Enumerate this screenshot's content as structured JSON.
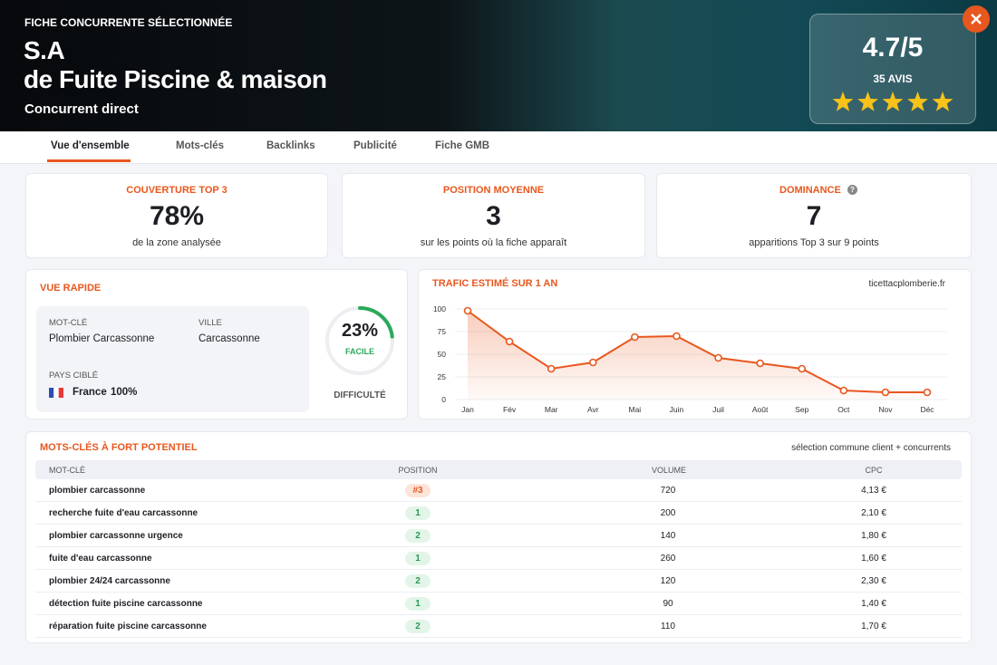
{
  "header": {
    "label": "FICHE CONCURRENTE SÉLECTIONNÉE",
    "title_lines": [
      "S.A",
      "de Fuite Piscine & maison"
    ],
    "subtitle": "Concurrent direct",
    "rating": "4.7/5",
    "reviews": "35 AVIS",
    "stars": 5
  },
  "tabs": {
    "items": [
      "Vue d'ensemble",
      "Mots-clés",
      "Backlinks",
      "Publicité",
      "Fiche GMB"
    ],
    "active": 0
  },
  "kpis": [
    {
      "label": "COUVERTURE TOP 3",
      "value": "78%",
      "sub": "de la zone analysée"
    },
    {
      "label": "POSITION MOYENNE",
      "value": "3",
      "sub": "sur les points où la fiche apparaît"
    },
    {
      "label": "DOMINANCE",
      "value": "7",
      "sub": "apparitions Top 3 sur 9 points"
    }
  ],
  "quick_view": {
    "title": "VUE RAPIDE",
    "fields": [
      {
        "label": "MOT-CLÉ",
        "value": "Plombier Carcassonne"
      },
      {
        "label": "VILLE",
        "value": "Carcassonne"
      },
      {
        "label": "PAYS CIBLÉ",
        "value": "France",
        "share": "100%"
      }
    ],
    "difficulty": {
      "value": 23,
      "value_label": "23%",
      "level": "FACILE",
      "label": "DIFFICULTÉ"
    }
  },
  "chart_data": {
    "type": "line",
    "title": "TRAFIC ESTIMÉ SUR 1 AN",
    "annotation": "ticettacplomberie.fr",
    "categories": [
      "Jan",
      "Fév",
      "Mar",
      "Avr",
      "Mai",
      "Juin",
      "Juil",
      "Août",
      "Sep",
      "Oct",
      "Nov",
      "Déc"
    ],
    "values": [
      98,
      64,
      34,
      41,
      69,
      70,
      46,
      40,
      34,
      10,
      8,
      8
    ],
    "color": "#e8571e",
    "ylim": [
      0,
      100
    ],
    "yticks": [
      0,
      25,
      50,
      75,
      100
    ],
    "grid": true
  },
  "table": {
    "title": "MOTS-CLÉS À FORT POTENTIEL",
    "note": "sélection commune client + concurrents",
    "columns": [
      "MOT-CLÉ",
      "POSITION",
      "VOLUME",
      "CPC"
    ],
    "rows": [
      [
        "plombier carcassonne",
        "#3",
        "720",
        "4,13 €"
      ],
      [
        "recherche fuite d'eau carcassonne",
        "1",
        "200",
        "2,10 €"
      ],
      [
        "plombier carcassonne urgence",
        "2",
        "140",
        "1,80 €"
      ],
      [
        "fuite d'eau carcassonne",
        "1",
        "260",
        "1,60 €"
      ],
      [
        "plombier 24/24 carcassonne",
        "2",
        "120",
        "2,30 €"
      ],
      [
        "détection fuite piscine carcassonne",
        "1",
        "90",
        "1,40 €"
      ],
      [
        "réparation fuite piscine carcassonne",
        "2",
        "110",
        "1,70 €"
      ]
    ]
  }
}
